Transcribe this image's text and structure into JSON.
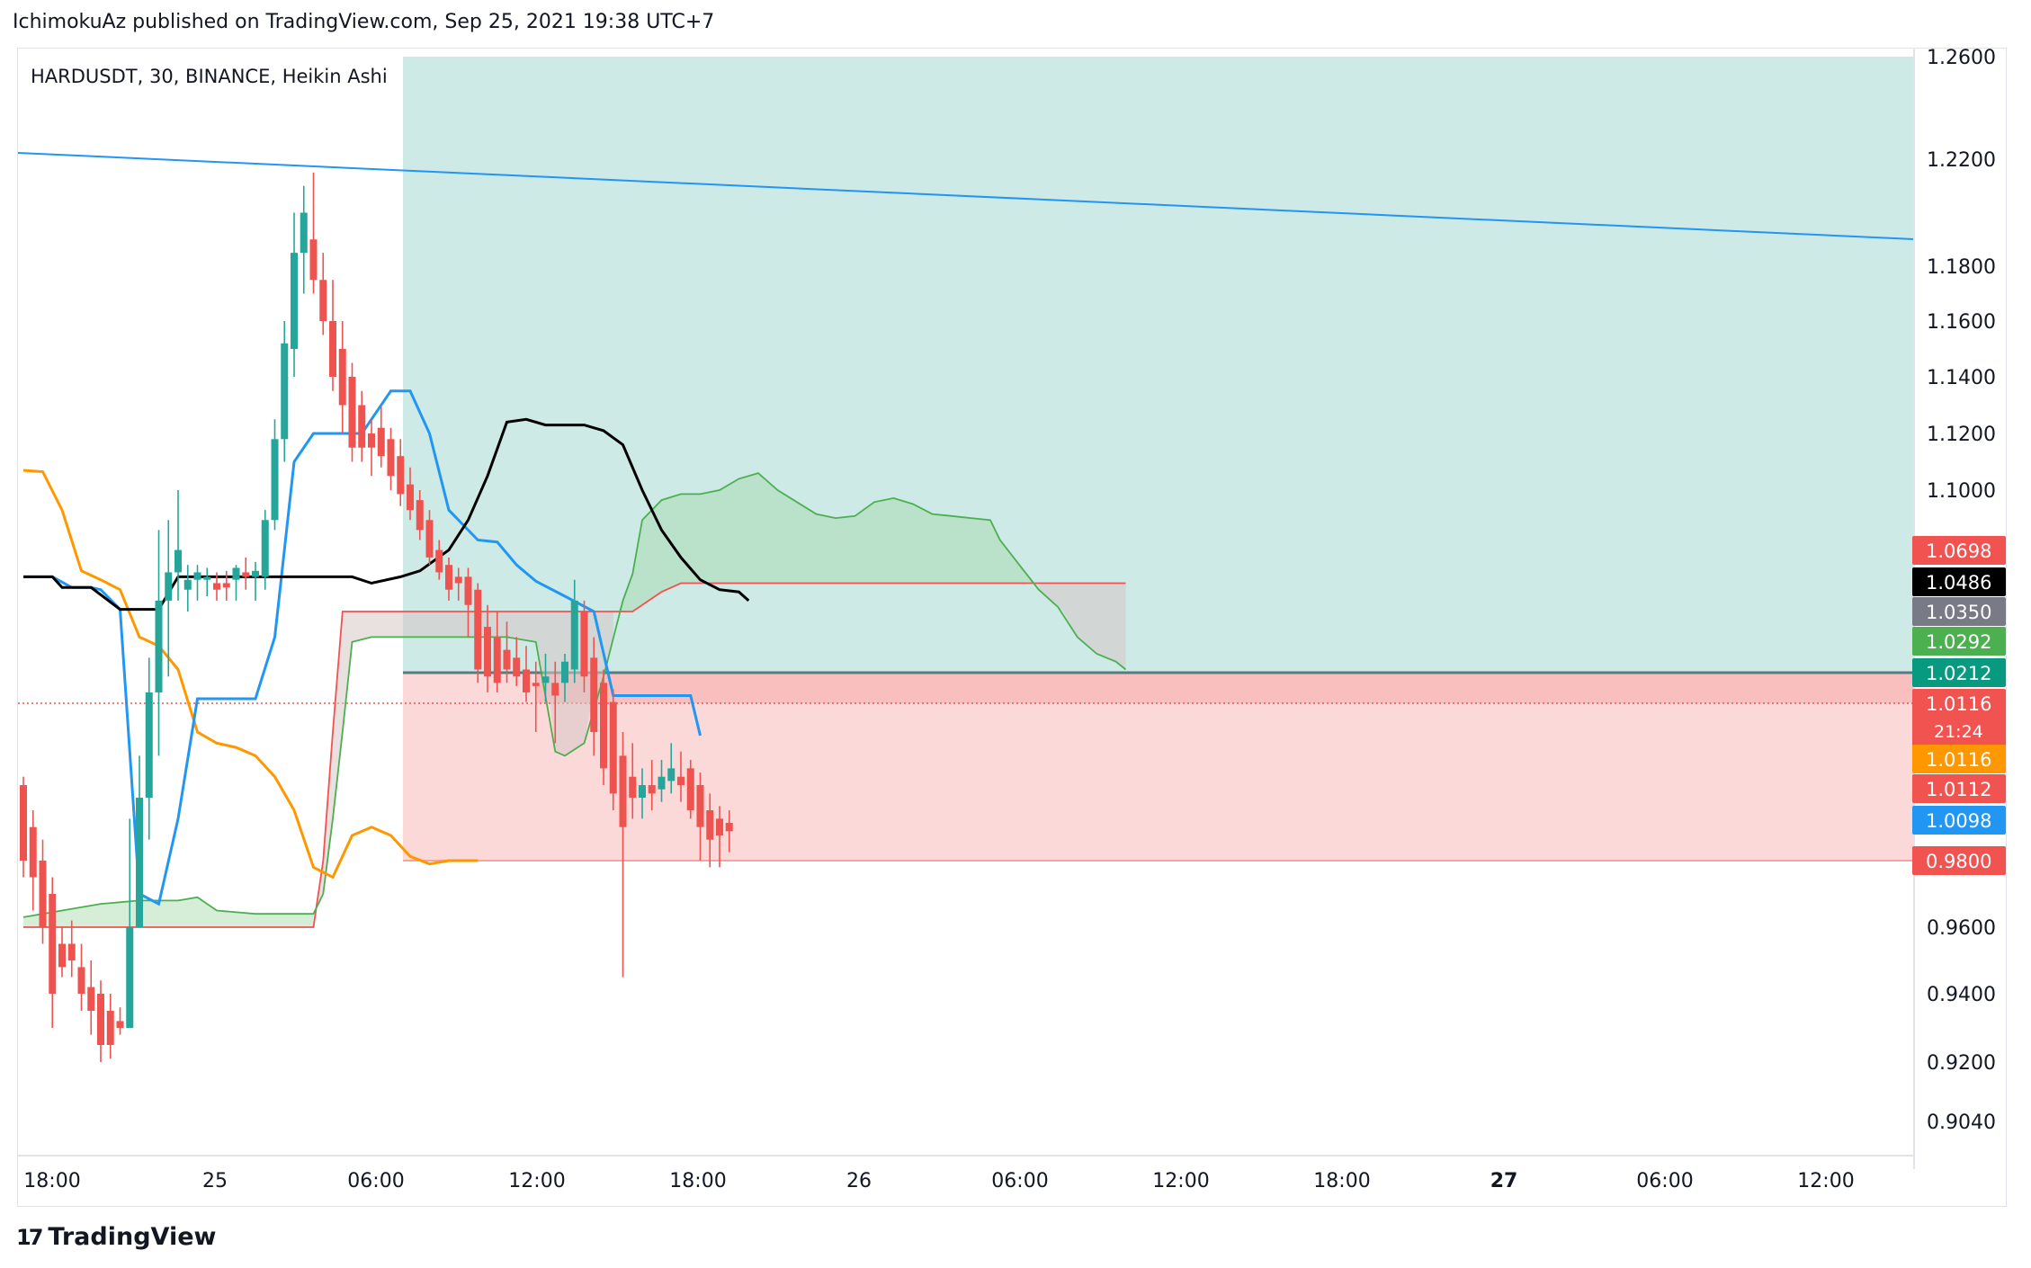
{
  "header": {
    "published_by": "IchimokuAz published on TradingView.com, Sep 25, 2021 19:38 UTC+7"
  },
  "footer": {
    "brand": "TradingView",
    "logo_glyph": "17"
  },
  "chart_data": {
    "type": "candlestick",
    "title": "HARDUSDT, 30, BINANCE, Heikin Ashi",
    "symbol": "HARDUSDT",
    "interval": "30",
    "exchange": "BINANCE",
    "candle_style": "Heikin Ashi",
    "x_labels": [
      "18:00",
      "25",
      "06:00",
      "12:00",
      "18:00",
      "26",
      "06:00",
      "12:00",
      "18:00",
      "27",
      "06:00",
      "12:00"
    ],
    "x_label_bold": [
      "27"
    ],
    "y_ticks": [
      "1.2600",
      "1.2200",
      "1.1800",
      "1.1600",
      "1.1400",
      "1.1200",
      "1.1000",
      "0.9600",
      "0.9400",
      "0.9200",
      "0.9040"
    ],
    "price_labels": [
      {
        "text": "1.0698",
        "color": "#f05350"
      },
      {
        "text": "1.0486",
        "color": "#000000"
      },
      {
        "text": "1.0350",
        "color": "#787b86"
      },
      {
        "text": "1.0292",
        "color": "#4caf50"
      },
      {
        "text": "1.0212",
        "color": "#089981"
      },
      {
        "text": "1.0116",
        "sub": "21:24",
        "color": "#f05350"
      },
      {
        "text": "1.0116",
        "color": "#ff9800"
      },
      {
        "text": "1.0112",
        "color": "#f05350"
      },
      {
        "text": "1.0098",
        "color": "#2196f3"
      },
      {
        "text": "0.9800",
        "color": "#f05350"
      }
    ],
    "position_tool": {
      "type": "long",
      "entry": 1.0212,
      "target": 1.26,
      "stop": 0.98
    },
    "last_price": 1.0116,
    "colors": {
      "up": "#26a69a",
      "down": "#ef5350",
      "tenkan": "#2196f3",
      "kijun": "#ff9800",
      "chikou": "#000000",
      "senkou_a": "#4caf50",
      "senkou_b": "#f05350",
      "trendline": "#2196f3",
      "profit_zone": "#cdeae7",
      "loss_zone": "#fbd9d9"
    },
    "candles": [
      {
        "o": 0.998,
        "h": 1.0,
        "l": 0.975,
        "c": 0.98
      },
      {
        "o": 0.988,
        "h": 0.992,
        "l": 0.965,
        "c": 0.975
      },
      {
        "o": 0.98,
        "h": 0.985,
        "l": 0.955,
        "c": 0.96
      },
      {
        "o": 0.97,
        "h": 0.975,
        "l": 0.93,
        "c": 0.94
      },
      {
        "o": 0.955,
        "h": 0.96,
        "l": 0.945,
        "c": 0.948
      },
      {
        "o": 0.955,
        "h": 0.962,
        "l": 0.945,
        "c": 0.95
      },
      {
        "o": 0.948,
        "h": 0.955,
        "l": 0.935,
        "c": 0.94
      },
      {
        "o": 0.942,
        "h": 0.95,
        "l": 0.928,
        "c": 0.935
      },
      {
        "o": 0.94,
        "h": 0.944,
        "l": 0.92,
        "c": 0.925
      },
      {
        "o": 0.935,
        "h": 0.94,
        "l": 0.921,
        "c": 0.925
      },
      {
        "o": 0.932,
        "h": 0.936,
        "l": 0.928,
        "c": 0.93
      },
      {
        "o": 0.93,
        "h": 0.99,
        "l": 0.93,
        "c": 0.96
      },
      {
        "o": 0.96,
        "h": 1.005,
        "l": 0.96,
        "c": 0.995
      },
      {
        "o": 0.995,
        "h": 1.025,
        "l": 0.985,
        "c": 1.015
      },
      {
        "o": 1.015,
        "h": 1.08,
        "l": 1.005,
        "c": 1.04
      },
      {
        "o": 1.04,
        "h": 1.085,
        "l": 1.02,
        "c": 1.055
      },
      {
        "o": 1.055,
        "h": 1.1,
        "l": 1.04,
        "c": 1.07
      },
      {
        "o": 1.045,
        "h": 1.06,
        "l": 1.035,
        "c": 1.05
      },
      {
        "o": 1.05,
        "h": 1.06,
        "l": 1.04,
        "c": 1.055
      },
      {
        "o": 1.05,
        "h": 1.058,
        "l": 1.042,
        "c": 1.052
      },
      {
        "o": 1.048,
        "h": 1.055,
        "l": 1.04,
        "c": 1.045
      },
      {
        "o": 1.048,
        "h": 1.056,
        "l": 1.04,
        "c": 1.046
      },
      {
        "o": 1.05,
        "h": 1.06,
        "l": 1.04,
        "c": 1.058
      },
      {
        "o": 1.055,
        "h": 1.065,
        "l": 1.045,
        "c": 1.052
      },
      {
        "o": 1.052,
        "h": 1.062,
        "l": 1.04,
        "c": 1.056
      },
      {
        "o": 1.052,
        "h": 1.09,
        "l": 1.045,
        "c": 1.085
      },
      {
        "o": 1.085,
        "h": 1.125,
        "l": 1.08,
        "c": 1.118
      },
      {
        "o": 1.118,
        "h": 1.16,
        "l": 1.11,
        "c": 1.152
      },
      {
        "o": 1.15,
        "h": 1.2,
        "l": 1.14,
        "c": 1.185
      },
      {
        "o": 1.185,
        "h": 1.21,
        "l": 1.17,
        "c": 1.2
      },
      {
        "o": 1.19,
        "h": 1.215,
        "l": 1.17,
        "c": 1.175
      },
      {
        "o": 1.175,
        "h": 1.185,
        "l": 1.155,
        "c": 1.16
      },
      {
        "o": 1.16,
        "h": 1.175,
        "l": 1.135,
        "c": 1.14
      },
      {
        "o": 1.15,
        "h": 1.16,
        "l": 1.12,
        "c": 1.13
      },
      {
        "o": 1.14,
        "h": 1.145,
        "l": 1.11,
        "c": 1.115
      },
      {
        "o": 1.13,
        "h": 1.135,
        "l": 1.11,
        "c": 1.115
      },
      {
        "o": 1.12,
        "h": 1.125,
        "l": 1.105,
        "c": 1.115
      },
      {
        "o": 1.122,
        "h": 1.13,
        "l": 1.108,
        "c": 1.112
      },
      {
        "o": 1.118,
        "h": 1.122,
        "l": 1.1,
        "c": 1.105
      },
      {
        "o": 1.112,
        "h": 1.118,
        "l": 1.092,
        "c": 1.098
      },
      {
        "o": 1.102,
        "h": 1.108,
        "l": 1.085,
        "c": 1.09
      },
      {
        "o": 1.095,
        "h": 1.1,
        "l": 1.075,
        "c": 1.08
      },
      {
        "o": 1.085,
        "h": 1.09,
        "l": 1.06,
        "c": 1.065
      },
      {
        "o": 1.07,
        "h": 1.075,
        "l": 1.05,
        "c": 1.055
      },
      {
        "o": 1.06,
        "h": 1.065,
        "l": 1.04,
        "c": 1.045
      },
      {
        "o": 1.052,
        "h": 1.058,
        "l": 1.04,
        "c": 1.048
      },
      {
        "o": 1.052,
        "h": 1.058,
        "l": 1.03,
        "c": 1.038
      },
      {
        "o": 1.045,
        "h": 1.048,
        "l": 1.018,
        "c": 1.022
      },
      {
        "o": 1.032,
        "h": 1.038,
        "l": 1.015,
        "c": 1.02
      },
      {
        "o": 1.03,
        "h": 1.035,
        "l": 1.015,
        "c": 1.018
      },
      {
        "o": 1.027,
        "h": 1.033,
        "l": 1.018,
        "c": 1.022
      },
      {
        "o": 1.025,
        "h": 1.03,
        "l": 1.017,
        "c": 1.02
      },
      {
        "o": 1.022,
        "h": 1.028,
        "l": 1.012,
        "c": 1.015
      },
      {
        "o": 1.018,
        "h": 1.024,
        "l": 1.01,
        "c": 1.017
      },
      {
        "o": 1.018,
        "h": 1.026,
        "l": 1.012,
        "c": 1.02
      },
      {
        "o": 1.018,
        "h": 1.024,
        "l": 1.008,
        "c": 1.014
      },
      {
        "o": 1.018,
        "h": 1.026,
        "l": 1.012,
        "c": 1.024
      },
      {
        "o": 1.022,
        "h": 1.05,
        "l": 1.018,
        "c": 1.04
      },
      {
        "o": 1.035,
        "h": 1.04,
        "l": 1.015,
        "c": 1.02
      },
      {
        "o": 1.025,
        "h": 1.03,
        "l": 1.005,
        "c": 1.01
      },
      {
        "o": 1.018,
        "h": 1.022,
        "l": 0.998,
        "c": 1.002
      },
      {
        "o": 1.012,
        "h": 1.016,
        "l": 0.992,
        "c": 0.996
      },
      {
        "o": 1.005,
        "h": 1.01,
        "l": 0.945,
        "c": 0.988
      },
      {
        "o": 1.0,
        "h": 1.008,
        "l": 0.99,
        "c": 0.995
      },
      {
        "o": 0.995,
        "h": 1.002,
        "l": 0.99,
        "c": 0.998
      },
      {
        "o": 0.998,
        "h": 1.004,
        "l": 0.992,
        "c": 0.996
      },
      {
        "o": 0.997,
        "h": 1.004,
        "l": 0.994,
        "c": 1.0
      },
      {
        "o": 0.999,
        "h": 1.008,
        "l": 0.996,
        "c": 1.002
      },
      {
        "o": 1.0,
        "h": 1.006,
        "l": 0.994,
        "c": 0.998
      },
      {
        "o": 1.002,
        "h": 1.004,
        "l": 0.99,
        "c": 0.992
      },
      {
        "o": 0.998,
        "h": 1.001,
        "l": 0.98,
        "c": 0.988
      },
      {
        "o": 0.992,
        "h": 0.996,
        "l": 0.978,
        "c": 0.985
      },
      {
        "o": 0.99,
        "h": 0.993,
        "l": 0.978,
        "c": 0.986
      },
      {
        "o": 0.989,
        "h": 0.992,
        "l": 0.982,
        "c": 0.987
      }
    ],
    "tenkan": [
      [
        0,
        1.052
      ],
      [
        3,
        1.052
      ],
      [
        5,
        1.046
      ],
      [
        7,
        1.046
      ],
      [
        8,
        1.045
      ],
      [
        10,
        1.036
      ],
      [
        12,
        0.97
      ],
      [
        14,
        0.967
      ],
      [
        16,
        0.99
      ],
      [
        18,
        1.013
      ],
      [
        24,
        1.013
      ],
      [
        26,
        1.03
      ],
      [
        28,
        1.11
      ],
      [
        30,
        1.12
      ],
      [
        35,
        1.12
      ],
      [
        38,
        1.135
      ],
      [
        40,
        1.135
      ],
      [
        42,
        1.12
      ],
      [
        44,
        1.09
      ],
      [
        47,
        1.075
      ],
      [
        49,
        1.074
      ],
      [
        51,
        1.06
      ],
      [
        53,
        1.049
      ],
      [
        56,
        1.042
      ],
      [
        59,
        1.035
      ],
      [
        61,
        1.014
      ],
      [
        63,
        1.014
      ],
      [
        65,
        1.014
      ],
      [
        67,
        1.014
      ],
      [
        69,
        1.014
      ],
      [
        70,
        1.0098
      ]
    ],
    "kijun": [
      [
        0,
        1.107
      ],
      [
        2,
        1.1065
      ],
      [
        4,
        1.09
      ],
      [
        6,
        1.056
      ],
      [
        8,
        1.05
      ],
      [
        10,
        1.045
      ],
      [
        12,
        1.03
      ],
      [
        14,
        1.028
      ],
      [
        16,
        1.022
      ],
      [
        18,
        1.01
      ],
      [
        20,
        1.008
      ],
      [
        22,
        1.007
      ],
      [
        24,
        1.005
      ],
      [
        26,
        1.0
      ],
      [
        28,
        0.992
      ],
      [
        30,
        0.978
      ],
      [
        32,
        0.975
      ],
      [
        34,
        0.986
      ],
      [
        36,
        0.988
      ],
      [
        38,
        0.986
      ],
      [
        40,
        0.981
      ],
      [
        42,
        0.979
      ],
      [
        44,
        0.98
      ],
      [
        46,
        0.98
      ],
      [
        47,
        0.98
      ]
    ],
    "chikou": [
      [
        0,
        1.052
      ],
      [
        3,
        1.052
      ],
      [
        4,
        1.046
      ],
      [
        7,
        1.046
      ],
      [
        10,
        1.036
      ],
      [
        14,
        1.036
      ],
      [
        16,
        1.052
      ],
      [
        20,
        1.052
      ],
      [
        24,
        1.052
      ],
      [
        26,
        1.052
      ],
      [
        30,
        1.052
      ],
      [
        34,
        1.052
      ],
      [
        36,
        1.048
      ],
      [
        39,
        1.052
      ],
      [
        41,
        1.056
      ],
      [
        44,
        1.07
      ],
      [
        46,
        1.085
      ],
      [
        48,
        1.105
      ],
      [
        50,
        1.124
      ],
      [
        52,
        1.125
      ],
      [
        54,
        1.123
      ],
      [
        56,
        1.123
      ],
      [
        58,
        1.123
      ],
      [
        60,
        1.121
      ],
      [
        62,
        1.116
      ],
      [
        64,
        1.1
      ],
      [
        66,
        1.08
      ],
      [
        68,
        1.065
      ],
      [
        70,
        1.05
      ],
      [
        72,
        1.045
      ],
      [
        74,
        1.044
      ],
      [
        75,
        1.04
      ]
    ],
    "senkou_a": [
      [
        0,
        0.963
      ],
      [
        4,
        0.965
      ],
      [
        8,
        0.967
      ],
      [
        12,
        0.968
      ],
      [
        16,
        0.968
      ],
      [
        18,
        0.969
      ],
      [
        20,
        0.965
      ],
      [
        24,
        0.964
      ],
      [
        28,
        0.964
      ],
      [
        30,
        0.964
      ],
      [
        31,
        0.97
      ],
      [
        32,
        0.99
      ],
      [
        33,
        1.01
      ],
      [
        34,
        1.029
      ],
      [
        36,
        1.03
      ],
      [
        38,
        1.03
      ],
      [
        40,
        1.03
      ],
      [
        42,
        1.03
      ],
      [
        44,
        1.03
      ],
      [
        46,
        1.03
      ],
      [
        48,
        1.03
      ],
      [
        50,
        1.03
      ],
      [
        53,
        1.029
      ],
      [
        55,
        1.006
      ],
      [
        56,
        1.005
      ],
      [
        58,
        1.008
      ],
      [
        60,
        1.02
      ],
      [
        62,
        1.04
      ],
      [
        63,
        1.054
      ],
      [
        64,
        1.085
      ],
      [
        66,
        1.095
      ],
      [
        68,
        1.098
      ],
      [
        70,
        1.098
      ],
      [
        72,
        1.1
      ],
      [
        74,
        1.104
      ],
      [
        76,
        1.106
      ],
      [
        78,
        1.1
      ],
      [
        80,
        1.094
      ],
      [
        82,
        1.088
      ],
      [
        84,
        1.086
      ],
      [
        86,
        1.087
      ],
      [
        88,
        1.094
      ],
      [
        90,
        1.096
      ],
      [
        92,
        1.093
      ],
      [
        94,
        1.088
      ],
      [
        96,
        1.087
      ],
      [
        98,
        1.086
      ],
      [
        100,
        1.085
      ],
      [
        101,
        1.075
      ],
      [
        103,
        1.06
      ],
      [
        105,
        1.045
      ],
      [
        107,
        1.037
      ],
      [
        109,
        1.03
      ],
      [
        111,
        1.026
      ],
      [
        113,
        1.024
      ],
      [
        114,
        1.022
      ]
    ],
    "senkou_b": [
      [
        0,
        0.96
      ],
      [
        4,
        0.96
      ],
      [
        8,
        0.96
      ],
      [
        12,
        0.96
      ],
      [
        16,
        0.96
      ],
      [
        20,
        0.96
      ],
      [
        24,
        0.96
      ],
      [
        28,
        0.96
      ],
      [
        30,
        0.96
      ],
      [
        31,
        0.98
      ],
      [
        32,
        1.01
      ],
      [
        33,
        1.035
      ],
      [
        36,
        1.035
      ],
      [
        40,
        1.035
      ],
      [
        44,
        1.035
      ],
      [
        48,
        1.035
      ],
      [
        52,
        1.035
      ],
      [
        56,
        1.035
      ],
      [
        60,
        1.035
      ],
      [
        63,
        1.035
      ],
      [
        64,
        1.038
      ],
      [
        66,
        1.044
      ],
      [
        68,
        1.048
      ],
      [
        72,
        1.048
      ],
      [
        76,
        1.048
      ],
      [
        80,
        1.048
      ],
      [
        84,
        1.048
      ],
      [
        88,
        1.048
      ],
      [
        92,
        1.048
      ],
      [
        96,
        1.048
      ],
      [
        100,
        1.048
      ],
      [
        104,
        1.048
      ],
      [
        108,
        1.048
      ],
      [
        112,
        1.048
      ],
      [
        114,
        1.048
      ]
    ],
    "trendline": [
      [
        1.223,
        0
      ],
      [
        1.212,
        200
      ]
    ]
  }
}
